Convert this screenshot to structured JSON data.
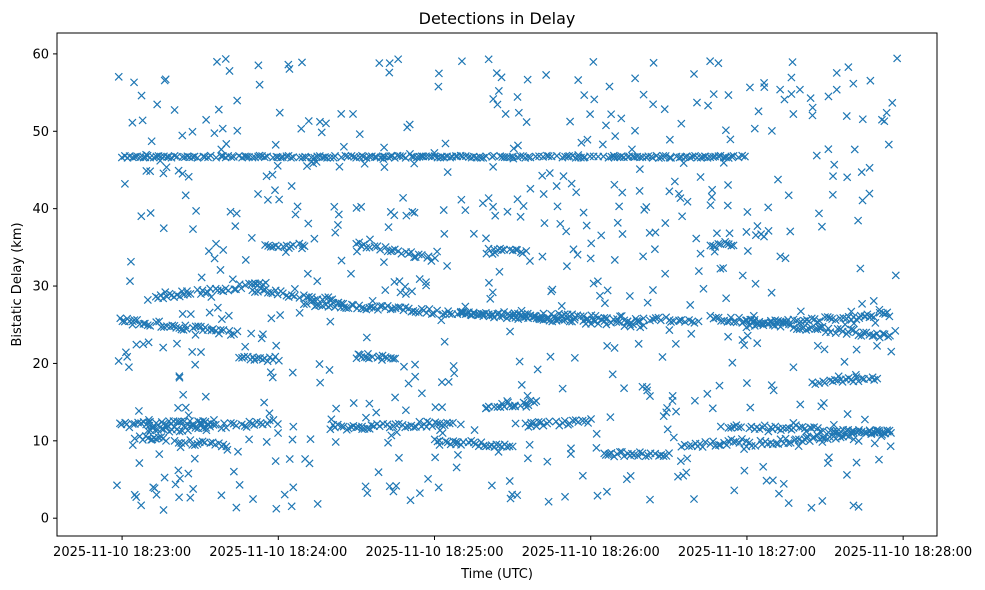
{
  "chart_data": {
    "type": "scatter",
    "title": "Detections in Delay",
    "xlabel": "Time (UTC)",
    "ylabel": "Bistatic Delay (km)",
    "x_ticks": [
      "2025-11-10 18:23:00",
      "2025-11-10 18:24:00",
      "2025-11-10 18:25:00",
      "2025-11-10 18:26:00",
      "2025-11-10 18:27:00",
      "2025-11-10 18:28:00"
    ],
    "y_ticks": [
      0,
      10,
      20,
      30,
      40,
      50,
      60
    ],
    "xlim": [
      "2025-11-10 18:22:35",
      "2025-11-10 18:28:13"
    ],
    "ylim": [
      -2.3,
      62.7
    ],
    "marker": "x",
    "color": "#1f77b4",
    "grid": false,
    "series": [
      {
        "name": "",
        "tracks": [
          {
            "start": "2025-11-10 18:23:00",
            "end": "2025-11-10 18:27:00",
            "delay": 46.7,
            "spread": 0.15
          },
          {
            "start": "2025-11-10 18:22:59",
            "end": "2025-11-10 18:23:45",
            "delay_start": 25.7,
            "delay_end": 23.8
          },
          {
            "start": "2025-11-10 18:23:10",
            "end": "2025-11-10 18:23:55",
            "delay_start": 28.5,
            "delay_end": 30.3
          },
          {
            "start": "2025-11-10 18:23:50",
            "end": "2025-11-10 18:24:25",
            "delay_start": 29.5,
            "delay_end": 28.0
          },
          {
            "start": "2025-11-10 18:24:10",
            "end": "2025-11-10 18:26:20",
            "delay_start": 27.8,
            "delay_end": 25.0
          },
          {
            "start": "2025-11-10 18:25:10",
            "end": "2025-11-10 18:26:40",
            "delay_start": 26.5,
            "delay_end": 25.5
          },
          {
            "start": "2025-11-10 18:26:45",
            "end": "2025-11-10 18:27:55",
            "delay_start": 26.0,
            "delay_end": 23.5
          },
          {
            "start": "2025-11-10 18:27:00",
            "end": "2025-11-10 18:27:55",
            "delay_start": 25.0,
            "delay_end": 26.3
          },
          {
            "start": "2025-11-10 18:22:59",
            "end": "2025-11-10 18:23:35",
            "delay_start": 12.0,
            "delay_end": 12.4
          },
          {
            "start": "2025-11-10 18:23:05",
            "end": "2025-11-10 18:23:40",
            "delay_start": 10.5,
            "delay_end": 9.4
          },
          {
            "start": "2025-11-10 18:23:10",
            "end": "2025-11-10 18:24:00",
            "delay_start": 11.3,
            "delay_end": 12.4
          },
          {
            "start": "2025-11-10 18:24:20",
            "end": "2025-11-10 18:25:10",
            "delay_start": 11.7,
            "delay_end": 12.3
          },
          {
            "start": "2025-11-10 18:25:00",
            "end": "2025-11-10 18:25:30",
            "delay_start": 10.0,
            "delay_end": 9.3
          },
          {
            "start": "2025-11-10 18:25:20",
            "end": "2025-11-10 18:25:40",
            "delay_start": 14.4,
            "delay_end": 15.0
          },
          {
            "start": "2025-11-10 18:25:35",
            "end": "2025-11-10 18:26:00",
            "delay_start": 12.0,
            "delay_end": 12.5
          },
          {
            "start": "2025-11-10 18:26:05",
            "end": "2025-11-10 18:26:30",
            "delay_start": 8.3,
            "delay_end": 8.3
          },
          {
            "start": "2025-11-10 18:26:35",
            "end": "2025-11-10 18:27:00",
            "delay_start": 9.3,
            "delay_end": 10.0
          },
          {
            "start": "2025-11-10 18:26:50",
            "end": "2025-11-10 18:27:55",
            "delay_start": 12.0,
            "delay_end": 11.0
          },
          {
            "start": "2025-11-10 18:27:00",
            "end": "2025-11-10 18:27:55",
            "delay_start": 9.5,
            "delay_end": 11.3
          },
          {
            "start": "2025-11-10 18:27:25",
            "end": "2025-11-10 18:27:50",
            "delay_start": 17.5,
            "delay_end": 18.2
          },
          {
            "start": "2025-11-10 18:23:45",
            "end": "2025-11-10 18:24:00",
            "delay_start": 20.6,
            "delay_end": 20.6
          },
          {
            "start": "2025-11-10 18:24:30",
            "end": "2025-11-10 18:24:45",
            "delay_start": 20.9,
            "delay_end": 20.4
          },
          {
            "start": "2025-11-10 18:24:30",
            "end": "2025-11-10 18:25:00",
            "delay_start": 35.5,
            "delay_end": 33.5
          },
          {
            "start": "2025-11-10 18:25:20",
            "end": "2025-11-10 18:25:35",
            "delay_start": 34.5,
            "delay_end": 34.5
          },
          {
            "start": "2025-11-10 18:26:45",
            "end": "2025-11-10 18:26:55",
            "delay_start": 35.3,
            "delay_end": 35.3
          },
          {
            "start": "2025-11-10 18:23:55",
            "end": "2025-11-10 18:24:10",
            "delay_start": 35.2,
            "delay_end": 35.2
          }
        ],
        "scattered_points": {
          "count": 650,
          "time_range": [
            "2025-11-10 18:22:58",
            "2025-11-10 18:27:58"
          ],
          "delay_range": [
            1.0,
            59.5
          ]
        }
      }
    ]
  }
}
